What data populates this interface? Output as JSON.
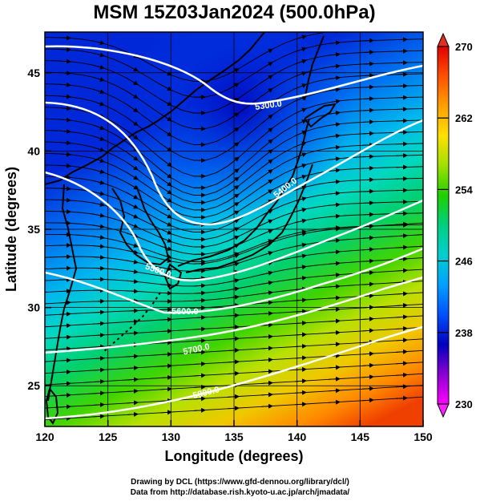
{
  "title": "MSM 15Z03Jan2024 (500.0hPa)",
  "x_axis": {
    "label": "Longitude (degrees)",
    "range": [
      120,
      150
    ],
    "ticks": [
      "120",
      "125",
      "130",
      "135",
      "140",
      "145",
      "150"
    ]
  },
  "y_axis": {
    "label": "Latitude  (degrees)",
    "range": [
      22.4,
      47.6
    ],
    "ticks": [
      "25",
      "30",
      "35",
      "40",
      "45"
    ]
  },
  "colorbar": {
    "min": 230,
    "max": 270,
    "ticks": [
      "230",
      "238",
      "246",
      "254",
      "262",
      "270"
    ],
    "colors": [
      "#ff00ff",
      "#8a00d0",
      "#0000c0",
      "#0050ff",
      "#00a0ff",
      "#00d0d0",
      "#00d080",
      "#20d000",
      "#a0e000",
      "#ffe000",
      "#ffa000",
      "#ff5000",
      "#e00000"
    ]
  },
  "contours": [
    {
      "label": "5300.0"
    },
    {
      "label": "5400.0"
    },
    {
      "label": "5500.0"
    },
    {
      "label": "5600.0"
    },
    {
      "label": "5700.0"
    },
    {
      "label": "5800.0"
    }
  ],
  "footer": {
    "line1": "Drawing by DCL (https://www.gfd-dennou.org/library/dcl/)",
    "line2": "Data from http://database.rish.kyoto-u.ac.jp/arch/jmadata/"
  }
}
